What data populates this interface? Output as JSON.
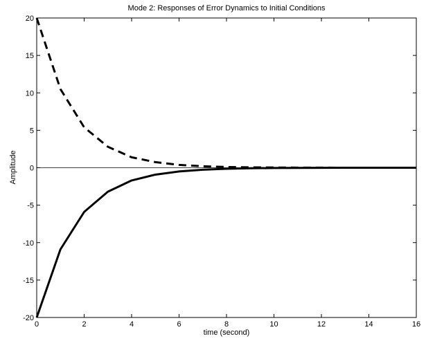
{
  "chart_data": {
    "type": "line",
    "title": "Mode 2: Responses of Error Dynamics to Initial Conditions",
    "xlabel": "time (second)",
    "ylabel": "Amplitude",
    "xlim": [
      0,
      16
    ],
    "ylim": [
      -20,
      20
    ],
    "xticks": [
      0,
      2,
      4,
      6,
      8,
      10,
      12,
      14,
      16
    ],
    "yticks": [
      -20,
      -15,
      -10,
      -5,
      0,
      5,
      10,
      15,
      20
    ],
    "grid": false,
    "reference_line_y": 0,
    "series": [
      {
        "style": "dashed",
        "x": [
          0,
          1,
          2,
          3,
          4,
          5,
          6,
          7,
          8,
          9,
          10,
          11,
          12,
          13,
          14,
          15,
          16
        ],
        "y": [
          20,
          10.5,
          5.4,
          2.8,
          1.4,
          0.75,
          0.38,
          0.2,
          0.1,
          0.05,
          0.03,
          0.015,
          0.008,
          0.004,
          0.002,
          0.001,
          0.0005
        ]
      },
      {
        "style": "solid",
        "x": [
          0,
          1,
          2,
          3,
          4,
          5,
          6,
          7,
          8,
          9,
          10,
          11,
          12,
          13,
          14,
          15,
          16
        ],
        "y": [
          -20,
          -10.9,
          -5.9,
          -3.2,
          -1.7,
          -0.92,
          -0.5,
          -0.27,
          -0.14,
          -0.07,
          -0.04,
          -0.02,
          -0.01,
          -0.005,
          -0.003,
          -0.0015,
          -0.0008
        ]
      }
    ]
  }
}
